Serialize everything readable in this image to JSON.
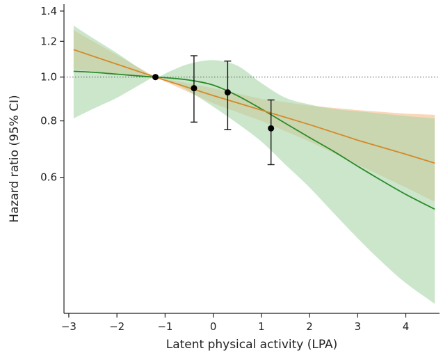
{
  "chart_data": {
    "type": "line",
    "xlabel": "Latent physical activity (LPA)",
    "ylabel": "Hazard ratio (95% CI)",
    "xlim": [
      -3.1,
      4.7
    ],
    "ylim": [
      0.3,
      1.45
    ],
    "y_scale": "log",
    "x_ticks": [
      -3,
      -2,
      -1,
      0,
      1,
      2,
      3,
      4
    ],
    "x_tick_labels": [
      "−3",
      "−2",
      "−1",
      "0",
      "1",
      "2",
      "3",
      "4"
    ],
    "y_ticks": [
      0.6,
      0.8,
      1.0,
      1.2,
      1.4
    ],
    "y_tick_labels": [
      "0.6",
      "0.8",
      "1.0",
      "1.2",
      "1.4"
    ],
    "reference_line": 1.0,
    "grid": false,
    "series": [
      {
        "kind": "spline",
        "color": "#2a8a2a",
        "band_color": "#a8d6a8",
        "x": [
          -2.9,
          -2.5,
          -2.0,
          -1.5,
          -1.2,
          -0.9,
          -0.5,
          0.0,
          0.5,
          1.0,
          1.5,
          2.0,
          2.5,
          3.0,
          3.5,
          4.0,
          4.6
        ],
        "y": [
          1.03,
          1.025,
          1.015,
          1.005,
          1.0,
          0.995,
          0.985,
          0.96,
          0.91,
          0.85,
          0.79,
          0.735,
          0.685,
          0.635,
          0.59,
          0.55,
          0.51
        ],
        "lower": [
          0.81,
          0.85,
          0.9,
          0.965,
          1.0,
          0.98,
          0.93,
          0.86,
          0.79,
          0.72,
          0.64,
          0.57,
          0.5,
          0.44,
          0.39,
          0.35,
          0.315
        ],
        "upper": [
          1.3,
          1.22,
          1.13,
          1.04,
          1.0,
          1.03,
          1.07,
          1.09,
          1.06,
          0.97,
          0.9,
          0.87,
          0.85,
          0.84,
          0.83,
          0.82,
          0.81
        ]
      },
      {
        "kind": "linear",
        "color": "#d4892a",
        "band_color": "#f8c9a0",
        "x": [
          -2.9,
          -1.2,
          0.0,
          1.0,
          2.0,
          3.0,
          4.0,
          4.6
        ],
        "y": [
          1.15,
          1.0,
          0.91,
          0.845,
          0.785,
          0.725,
          0.675,
          0.645
        ],
        "lower": [
          1.04,
          1.0,
          0.875,
          0.8,
          0.72,
          0.64,
          0.57,
          0.53
        ],
        "upper": [
          1.27,
          1.0,
          0.945,
          0.895,
          0.865,
          0.845,
          0.83,
          0.825
        ]
      }
    ],
    "points": {
      "color": "#000000",
      "x": [
        -1.2,
        -0.4,
        0.3,
        1.2
      ],
      "y": [
        1.0,
        0.945,
        0.925,
        0.77
      ],
      "lower": [
        1.0,
        0.795,
        0.765,
        0.64
      ],
      "upper": [
        1.0,
        1.115,
        1.085,
        0.89
      ]
    }
  }
}
